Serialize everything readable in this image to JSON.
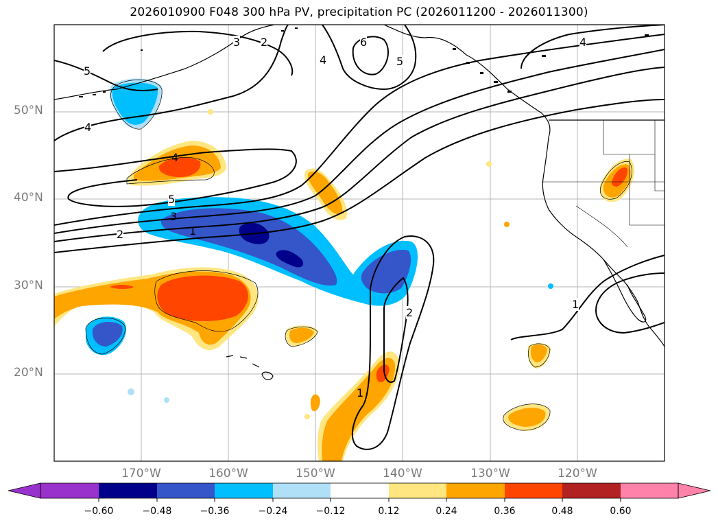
{
  "title": "2026010900 F048 300 hPa PV, precipitation PC (2026011200 - 2026011300)",
  "map": {
    "lat_ticks": [
      "50°N",
      "40°N",
      "30°N",
      "20°N"
    ],
    "lon_ticks": [
      "170°W",
      "160°W",
      "150°W",
      "140°W",
      "130°W",
      "120°W"
    ],
    "pv_contour_labels": [
      "5",
      "4",
      "4",
      "5",
      "3",
      "2",
      "1",
      "6",
      "5",
      "4",
      "3",
      "2",
      "4",
      "2",
      "1",
      "1"
    ],
    "colors": {
      "contour": "#000000",
      "grid": "#b0b0b0",
      "land_outline": "#000000"
    }
  },
  "colorbar": {
    "ticks": [
      "−0.60",
      "−0.48",
      "−0.36",
      "−0.24",
      "−0.12",
      "0.12",
      "0.24",
      "0.36",
      "0.48",
      "0.60"
    ],
    "colors": [
      "#9932cc",
      "#00008b",
      "#3456c9",
      "#00bfff",
      "#b0e0f8",
      "#ffffff",
      "#ffe680",
      "#ffa500",
      "#ff4500",
      "#b22222",
      "#ff82ab"
    ]
  }
}
